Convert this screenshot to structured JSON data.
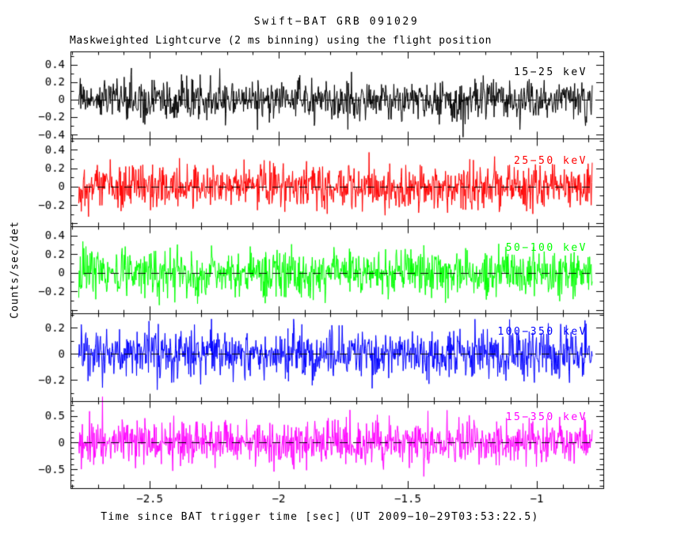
{
  "chart_data": {
    "type": "line",
    "title": "Swift−BAT GRB 091029",
    "subtitle": "Maskweighted Lightcurve (2 ms binning) using the flight position",
    "xlabel": "Time since BAT trigger time [sec] (UT 2009−10−29T03:53:22.5)",
    "ylabel": "Counts/sec/det",
    "xlim": [
      -2.807,
      -0.742
    ],
    "x_data_start": -2.775,
    "x_data_end": -0.785,
    "bin_seconds": 0.002,
    "n_points": 995,
    "x_minor_step": 0.1,
    "x_ticks": [
      {
        "value": -2.5,
        "label": "−2.5"
      },
      {
        "value": -2.0,
        "label": "−2"
      },
      {
        "value": -1.5,
        "label": "−1.5"
      },
      {
        "value": -1.0,
        "label": "−1"
      }
    ],
    "grid": false,
    "legend_position": "in-panel-upper-right",
    "zero_line": {
      "style": "dashed",
      "color": "#000000",
      "dash": [
        10,
        7
      ]
    },
    "background_color": "#ffffff",
    "frame_color": "#000000",
    "panels": [
      {
        "band": "15−25 keV",
        "color": "#000000",
        "ylim": [
          -0.45,
          0.55
        ],
        "y_major_step": 0.2,
        "y_minor_step": 0.1,
        "y_tick_labels": [
          {
            "value": 0.4,
            "label": "0.4"
          },
          {
            "value": 0.2,
            "label": "0.2"
          },
          {
            "value": 0,
            "label": "0"
          },
          {
            "value": -0.2,
            "label": "−0.2"
          },
          {
            "value": -0.4,
            "label": "−0.4"
          }
        ],
        "noise_std": 0.115,
        "mean": 0,
        "seed": 101
      },
      {
        "band": "25−50 keV",
        "color": "#ff0000",
        "ylim": [
          -0.43,
          0.52
        ],
        "y_major_step": 0.2,
        "y_minor_step": 0.1,
        "y_tick_labels": [
          {
            "value": 0.4,
            "label": "0.4"
          },
          {
            "value": 0.2,
            "label": "0.2"
          },
          {
            "value": 0,
            "label": "0"
          },
          {
            "value": -0.2,
            "label": "−0.2"
          }
        ],
        "noise_std": 0.12,
        "mean": 0,
        "seed": 202
      },
      {
        "band": "50−100 keV",
        "color": "#00ff00",
        "ylim": [
          -0.44,
          0.5
        ],
        "y_major_step": 0.2,
        "y_minor_step": 0.1,
        "y_tick_labels": [
          {
            "value": 0.4,
            "label": "0.4"
          },
          {
            "value": 0.2,
            "label": "0.2"
          },
          {
            "value": 0,
            "label": "0"
          },
          {
            "value": -0.2,
            "label": "−0.2"
          }
        ],
        "noise_std": 0.125,
        "mean": 0,
        "seed": 303
      },
      {
        "band": "100−350 keV",
        "color": "#0000ff",
        "ylim": [
          -0.36,
          0.31
        ],
        "y_major_step": 0.2,
        "y_minor_step": 0.1,
        "y_tick_labels": [
          {
            "value": 0.2,
            "label": "0.2"
          },
          {
            "value": 0,
            "label": "0"
          },
          {
            "value": -0.2,
            "label": "−0.2"
          }
        ],
        "noise_std": 0.095,
        "mean": 0,
        "seed": 404
      },
      {
        "band": "15−350 keV",
        "color": "#ff00ff",
        "ylim": [
          -0.85,
          0.78
        ],
        "y_major_step": 0.5,
        "y_minor_step": 0.1,
        "y_tick_labels": [
          {
            "value": 0.5,
            "label": "0.5"
          },
          {
            "value": 0,
            "label": "0"
          },
          {
            "value": -0.5,
            "label": "−0.5"
          }
        ],
        "noise_std": 0.21,
        "mean": 0,
        "seed": 505
      }
    ]
  }
}
